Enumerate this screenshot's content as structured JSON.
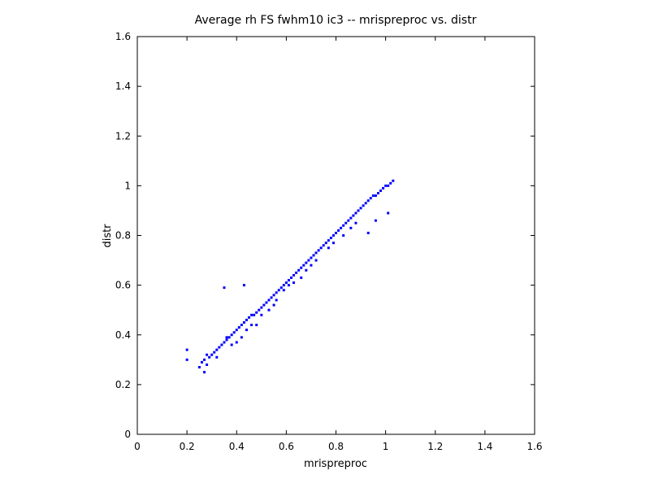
{
  "chart_data": {
    "type": "scatter",
    "title": "Average rh FS fwhm10 ic3 -- mrispreproc vs. distr",
    "xlabel": "mrispreproc",
    "ylabel": "distr",
    "xlim": [
      0,
      1.6
    ],
    "ylim": [
      0,
      1.6
    ],
    "xticks": [
      "0",
      "0.2",
      "0.4",
      "0.6",
      "0.8",
      "1",
      "1.2",
      "1.4",
      "1.6"
    ],
    "yticks": [
      "0",
      "0.2",
      "0.4",
      "0.6",
      "0.8",
      "1",
      "1.2",
      "1.4",
      "1.6"
    ],
    "grid": false,
    "marker_color": "#0000ff",
    "series": [
      {
        "x": [
          0.2,
          0.2,
          0.25,
          0.26,
          0.27,
          0.28,
          0.29,
          0.3,
          0.31,
          0.32,
          0.33,
          0.34,
          0.35,
          0.36,
          0.37,
          0.38,
          0.39,
          0.4,
          0.41,
          0.42,
          0.43,
          0.44,
          0.45,
          0.46,
          0.47,
          0.48,
          0.49,
          0.5,
          0.51,
          0.52,
          0.53,
          0.54,
          0.55,
          0.56,
          0.57,
          0.58,
          0.59,
          0.6,
          0.61,
          0.62,
          0.63,
          0.64,
          0.65,
          0.66,
          0.67,
          0.68,
          0.69,
          0.7,
          0.71,
          0.72,
          0.73,
          0.74,
          0.75,
          0.76,
          0.77,
          0.78,
          0.79,
          0.8,
          0.81,
          0.82,
          0.83,
          0.84,
          0.85,
          0.86,
          0.87,
          0.88,
          0.89,
          0.9,
          0.91,
          0.92,
          0.93,
          0.94,
          0.95,
          0.96,
          0.97,
          0.98,
          0.99,
          1.0,
          1.01,
          1.02,
          1.03,
          0.35,
          0.43,
          0.36,
          0.44,
          0.48,
          0.5,
          0.56,
          0.59,
          0.66,
          0.72,
          0.83,
          0.93,
          0.96,
          1.01,
          0.27,
          0.28,
          0.38,
          0.42,
          0.46,
          0.55,
          0.63,
          0.68,
          0.77,
          0.88,
          0.32,
          0.4,
          0.53,
          0.61,
          0.7,
          0.79,
          0.86
        ],
        "y": [
          0.34,
          0.3,
          0.27,
          0.29,
          0.3,
          0.32,
          0.31,
          0.32,
          0.33,
          0.34,
          0.35,
          0.36,
          0.37,
          0.38,
          0.39,
          0.4,
          0.41,
          0.42,
          0.43,
          0.44,
          0.45,
          0.46,
          0.47,
          0.48,
          0.48,
          0.49,
          0.5,
          0.51,
          0.52,
          0.53,
          0.54,
          0.55,
          0.56,
          0.57,
          0.58,
          0.59,
          0.6,
          0.61,
          0.62,
          0.63,
          0.64,
          0.65,
          0.66,
          0.67,
          0.68,
          0.69,
          0.7,
          0.71,
          0.72,
          0.73,
          0.74,
          0.75,
          0.76,
          0.77,
          0.78,
          0.79,
          0.8,
          0.81,
          0.82,
          0.83,
          0.84,
          0.85,
          0.86,
          0.87,
          0.88,
          0.89,
          0.9,
          0.91,
          0.92,
          0.93,
          0.94,
          0.95,
          0.96,
          0.96,
          0.97,
          0.98,
          0.99,
          1.0,
          1.0,
          1.01,
          1.02,
          0.59,
          0.6,
          0.39,
          0.42,
          0.44,
          0.48,
          0.54,
          0.58,
          0.63,
          0.7,
          0.8,
          0.81,
          0.86,
          0.89,
          0.25,
          0.28,
          0.36,
          0.39,
          0.44,
          0.52,
          0.61,
          0.66,
          0.75,
          0.85,
          0.31,
          0.37,
          0.5,
          0.6,
          0.68,
          0.77,
          0.83
        ]
      }
    ]
  }
}
